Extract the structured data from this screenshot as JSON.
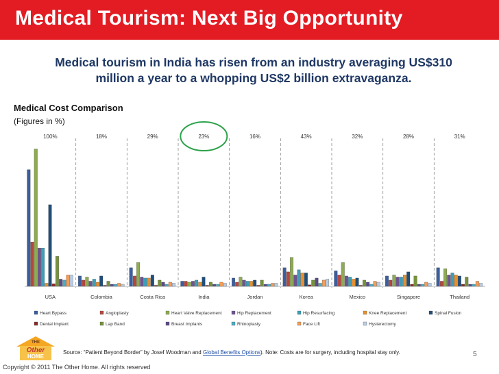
{
  "header": {
    "title": "Medical Tourism: Next Big Opportunity",
    "bg_color": "#e31b23"
  },
  "subtitle": {
    "line1": "Medical tourism in India has risen from an industry averaging US$310",
    "line2": "million a year to a whopping US$2 billion extravaganza."
  },
  "chart_data": {
    "type": "bar",
    "title": "Medical Cost Comparison",
    "note": "(Figures in %)",
    "categories": [
      "USA",
      "Colombia",
      "Costa Rica",
      "India",
      "Jordan",
      "Korea",
      "Mexico",
      "Singapore",
      "Thailand"
    ],
    "category_labels": [
      "100%",
      "18%",
      "29%",
      "23%",
      "16%",
      "43%",
      "32%",
      "28%",
      "31%"
    ],
    "highlighted_category": "India",
    "highlight_color": "#2ca24a",
    "ylim": [
      0,
      130000
    ],
    "grid": false,
    "legend_position": "bottom",
    "series": [
      {
        "name": "Heart Bypass",
        "color": "#3a5fa0",
        "values": [
          113000,
          10000,
          18000,
          5000,
          8000,
          18000,
          15000,
          10000,
          18000
        ]
      },
      {
        "name": "Angioplasty",
        "color": "#b5473f",
        "values": [
          43000,
          6000,
          10000,
          5000,
          4000,
          14000,
          11000,
          6000,
          5000
        ]
      },
      {
        "name": "Heart Valve Replacement",
        "color": "#8eab51",
        "values": [
          133000,
          9000,
          23000,
          4000,
          9000,
          28000,
          23000,
          11000,
          17000
        ]
      },
      {
        "name": "Hip Replacement",
        "color": "#6f558f",
        "values": [
          37000,
          5000,
          9000,
          5000,
          6000,
          11000,
          10000,
          9000,
          11000
        ]
      },
      {
        "name": "Hip Resurfacing",
        "color": "#3d9fb7",
        "values": [
          37000,
          7000,
          8000,
          6000,
          5000,
          16000,
          9000,
          9000,
          13000
        ]
      },
      {
        "name": "Knee Replacement",
        "color": "#e98f2c",
        "values": [
          3000,
          4000,
          8000,
          4000,
          5000,
          13000,
          7000,
          11000,
          11000
        ]
      },
      {
        "name": "Spinal Fusion",
        "color": "#1f4e79",
        "values": [
          79000,
          10000,
          11000,
          9000,
          6000,
          13000,
          8000,
          14000,
          10000
        ]
      },
      {
        "name": "Dental Implant",
        "color": "#8a2a2a",
        "values": [
          2500,
          1000,
          1000,
          1000,
          1000,
          1500,
          1000,
          2000,
          2000
        ]
      },
      {
        "name": "Lap Band",
        "color": "#76923c",
        "values": [
          29000,
          5000,
          6000,
          4000,
          6000,
          6000,
          6000,
          10000,
          9000
        ]
      },
      {
        "name": "Breast Implants",
        "color": "#5b4b8a",
        "values": [
          7000,
          2000,
          4000,
          2000,
          2000,
          8000,
          4000,
          2000,
          2000
        ]
      },
      {
        "name": "Rhinoplasty",
        "color": "#4bacc6",
        "values": [
          6000,
          2000,
          2000,
          2000,
          2000,
          3000,
          2000,
          2000,
          2000
        ]
      },
      {
        "name": "Face Lift",
        "color": "#f59d56",
        "values": [
          11000,
          3000,
          4000,
          4000,
          3000,
          6000,
          5000,
          4000,
          5000
        ]
      },
      {
        "name": "Hysterectomy",
        "color": "#b9cde5",
        "values": [
          11000,
          2000,
          3000,
          3000,
          3000,
          7000,
          4000,
          3000,
          3000
        ]
      }
    ]
  },
  "source": {
    "prefix": "Source: “Patient Beyond Border” by Josef Woodman and ",
    "link": "Global Benefits Options",
    "suffix": "). Note: Costs are for surgery, including hospital stay only."
  },
  "page_number": "5",
  "copyright": "Copyright © 2011 The Other Home. All rights reserved",
  "logo": {
    "line1": "THE",
    "line2": "Other",
    "line3": "HOME"
  }
}
